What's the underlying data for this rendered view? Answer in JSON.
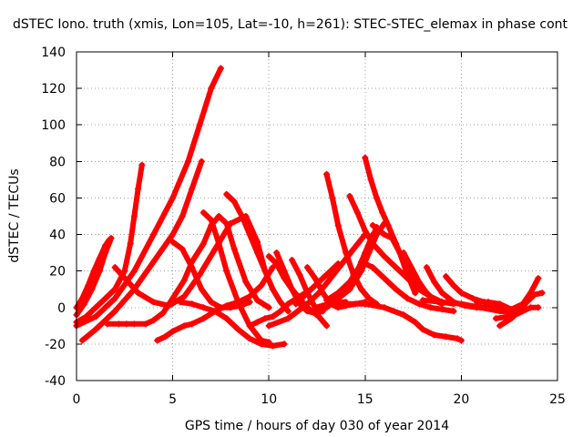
{
  "chart_data": {
    "type": "scatter",
    "title": "dSTEC Iono. truth (xmis, Lon=105, Lat=-10, h=261): STEC-STEC_elemax in phase cont",
    "xlabel": "GPS time / hours of day 030 of year 2014",
    "ylabel": "dSTEC  / TECUs",
    "xlim": [
      0,
      25
    ],
    "ylim": [
      -40,
      140
    ],
    "xticks": [
      0,
      5,
      10,
      15,
      20,
      25
    ],
    "yticks": [
      -40,
      -20,
      0,
      20,
      40,
      60,
      80,
      100,
      120,
      140
    ],
    "grid": true,
    "legend": "none",
    "marker": "plus",
    "color": "#ff0000",
    "series": [
      {
        "x": [
          0.0,
          0.3,
          0.6,
          0.9,
          1.2,
          1.5,
          1.7
        ],
        "y": [
          0,
          5,
          12,
          20,
          27,
          34,
          37
        ]
      },
      {
        "x": [
          0.0,
          0.4,
          0.8,
          1.2,
          1.5,
          1.8
        ],
        "y": [
          -4,
          2,
          10,
          20,
          30,
          38
        ]
      },
      {
        "x": [
          0.0,
          0.5,
          1.0,
          1.5,
          2.0,
          2.5,
          2.8,
          3.0,
          3.2,
          3.4
        ],
        "y": [
          -8,
          -5,
          0,
          5,
          10,
          20,
          35,
          50,
          65,
          78
        ]
      },
      {
        "x": [
          0.0,
          1.0,
          2.0,
          3.0,
          4.0,
          5.0,
          5.8,
          6.4,
          7.0,
          7.5
        ],
        "y": [
          -10,
          -5,
          5,
          20,
          40,
          60,
          80,
          100,
          120,
          131
        ]
      },
      {
        "x": [
          0.3,
          1.0,
          2.0,
          3.0,
          4.0,
          5.0,
          5.5,
          6.0,
          6.5
        ],
        "y": [
          -18,
          -12,
          -2,
          10,
          25,
          40,
          50,
          65,
          80
        ]
      },
      {
        "x": [
          1.6,
          2.2,
          2.6,
          3.0,
          3.6,
          4.0,
          4.5,
          5.0,
          5.6,
          6.0,
          6.6,
          7.0,
          7.4,
          7.8,
          8.2,
          8.8,
          9.4,
          10.0
        ],
        "y": [
          -9,
          -9,
          -9,
          -9,
          -9,
          -7,
          -3,
          5,
          15,
          25,
          35,
          45,
          50,
          46,
          32,
          14,
          4,
          0
        ]
      },
      {
        "x": [
          2.0,
          2.6,
          3.2,
          4.0,
          4.8,
          5.6,
          6.4,
          7.2,
          8.0,
          8.8,
          9.4,
          9.8
        ],
        "y": [
          22,
          15,
          8,
          3,
          1,
          6,
          18,
          32,
          46,
          50,
          36,
          20
        ]
      },
      {
        "x": [
          4.2,
          4.6,
          5.0,
          5.6,
          6.0,
          6.6,
          7.2,
          7.8,
          8.4,
          9.0,
          9.6,
          10.2
        ],
        "y": [
          -18,
          -16,
          -13,
          -10,
          -9,
          -6,
          -2,
          1,
          3,
          6,
          12,
          22
        ]
      },
      {
        "x": [
          5.0,
          5.5,
          6.0,
          6.5,
          7.0,
          7.5,
          8.0,
          8.5,
          9.0
        ],
        "y": [
          36,
          32,
          22,
          10,
          3,
          0,
          0,
          1,
          3
        ]
      },
      {
        "x": [
          5.4,
          6.0,
          6.6,
          7.2,
          7.8,
          8.4,
          9.0,
          9.6,
          10.2,
          10.8
        ],
        "y": [
          3,
          2,
          0,
          -2,
          -6,
          -12,
          -17,
          -20,
          -21,
          -20
        ]
      },
      {
        "x": [
          6.6,
          7.0,
          7.4,
          7.8,
          8.4,
          9.0,
          9.6,
          10.0
        ],
        "y": [
          52,
          48,
          35,
          20,
          3,
          -10,
          -18,
          -19
        ]
      },
      {
        "x": [
          7.8,
          8.2,
          8.6,
          9.0,
          9.4,
          9.8,
          10.2,
          10.6,
          11.0
        ],
        "y": [
          62,
          58,
          50,
          40,
          30,
          20,
          10,
          3,
          -2
        ]
      },
      {
        "x": [
          9.0,
          9.4,
          9.8,
          10.2,
          10.6,
          11.0,
          11.6,
          12.2
        ],
        "y": [
          -10,
          -8,
          -6,
          -5,
          -2,
          2,
          6,
          10
        ]
      },
      {
        "x": [
          10.0,
          10.4,
          10.8,
          11.2,
          11.6,
          12.0,
          12.6,
          13.0
        ],
        "y": [
          28,
          24,
          16,
          10,
          5,
          0,
          -5,
          -10
        ]
      },
      {
        "x": [
          10.4,
          10.8,
          11.2,
          11.6,
          12.0,
          12.4,
          12.8
        ],
        "y": [
          30,
          20,
          10,
          2,
          -2,
          -3,
          -2
        ]
      },
      {
        "x": [
          11.2,
          11.6,
          12.0,
          12.4,
          12.8,
          13.2,
          13.6,
          14.0
        ],
        "y": [
          26,
          18,
          8,
          0,
          1,
          2,
          3,
          3
        ]
      },
      {
        "x": [
          12.0,
          12.4,
          12.8,
          13.2,
          13.6,
          14.0,
          14.5,
          15.0
        ],
        "y": [
          22,
          16,
          8,
          2,
          0,
          1,
          2,
          3
        ]
      },
      {
        "x": [
          13.0,
          13.3,
          13.6,
          14.0,
          14.4,
          14.8,
          15.2,
          15.6
        ],
        "y": [
          73,
          60,
          45,
          30,
          18,
          10,
          5,
          2
        ]
      },
      {
        "x": [
          10.0,
          11.0,
          12.0,
          12.6,
          13.2,
          13.8,
          14.4,
          15.0
        ],
        "y": [
          -10,
          -6,
          2,
          8,
          16,
          24,
          32,
          40
        ]
      },
      {
        "x": [
          11.4,
          12.0,
          12.6,
          13.2,
          13.6
        ],
        "y": [
          2,
          8,
          14,
          20,
          24
        ]
      },
      {
        "x": [
          12.4,
          13.0,
          13.6,
          14.2,
          14.8,
          15.2,
          15.6,
          16.0
        ],
        "y": [
          -2,
          0,
          5,
          10,
          20,
          30,
          40,
          46
        ]
      },
      {
        "x": [
          13.0,
          13.6,
          14.2,
          14.8,
          15.2,
          15.6
        ],
        "y": [
          4,
          8,
          14,
          24,
          34,
          44
        ]
      },
      {
        "x": [
          13.6,
          14.2,
          14.6,
          15.0,
          15.4
        ],
        "y": [
          5,
          10,
          20,
          30,
          40
        ]
      },
      {
        "x": [
          14.2,
          14.6,
          15.0,
          15.4,
          16.0,
          16.6,
          17.2,
          17.8,
          18.4,
          19.0,
          19.6
        ],
        "y": [
          61,
          52,
          42,
          35,
          28,
          22,
          16,
          10,
          6,
          3,
          2
        ]
      },
      {
        "x": [
          15.0,
          15.3,
          15.6,
          15.9,
          16.2,
          16.6,
          17.0,
          17.6,
          18.2
        ],
        "y": [
          82,
          70,
          60,
          52,
          45,
          35,
          25,
          15,
          8
        ]
      },
      {
        "x": [
          13.0,
          14.0,
          15.0,
          16.0,
          17.0,
          17.6,
          18.0,
          18.6,
          19.2,
          19.8,
          20.0
        ],
        "y": [
          2,
          2,
          2,
          0,
          -4,
          -8,
          -12,
          -15,
          -16,
          -17,
          -18
        ]
      },
      {
        "x": [
          15.4,
          16.0,
          16.4,
          16.8,
          17.2,
          17.6
        ],
        "y": [
          45,
          40,
          38,
          30,
          18,
          8
        ]
      },
      {
        "x": [
          14.8,
          15.4,
          16.0,
          16.6,
          17.2,
          17.8,
          18.4,
          19.0,
          19.6
        ],
        "y": [
          25,
          22,
          16,
          10,
          5,
          2,
          0,
          -1,
          -2
        ]
      },
      {
        "x": [
          17.0,
          17.4,
          17.8,
          18.2,
          18.6,
          19.0
        ],
        "y": [
          30,
          22,
          14,
          8,
          4,
          2
        ]
      },
      {
        "x": [
          18.2,
          18.6,
          19.0,
          19.6,
          20.2,
          20.8,
          21.4
        ],
        "y": [
          22,
          14,
          8,
          3,
          1,
          0,
          0
        ]
      },
      {
        "x": [
          19.2,
          19.6,
          20.0,
          20.6,
          21.2,
          21.8,
          22.4,
          22.8
        ],
        "y": [
          17,
          12,
          8,
          5,
          3,
          1,
          -2,
          -4
        ]
      },
      {
        "x": [
          20.8,
          21.4,
          22.0,
          22.6,
          23.2,
          23.6,
          24.0
        ],
        "y": [
          3,
          3,
          2,
          -1,
          2,
          8,
          16
        ]
      },
      {
        "x": [
          21.8,
          22.4,
          22.8,
          23.2,
          23.6,
          24.0
        ],
        "y": [
          -6,
          -5,
          -4,
          -2,
          0,
          0
        ]
      },
      {
        "x": [
          22.0,
          22.6,
          23.0,
          23.4,
          23.8,
          24.2
        ],
        "y": [
          -10,
          -6,
          -2,
          3,
          7,
          8
        ]
      },
      {
        "x": [
          18.0,
          19.0,
          20.0,
          21.0,
          22.0,
          23.0
        ],
        "y": [
          4,
          3,
          2,
          0,
          -2,
          -3
        ]
      }
    ]
  }
}
